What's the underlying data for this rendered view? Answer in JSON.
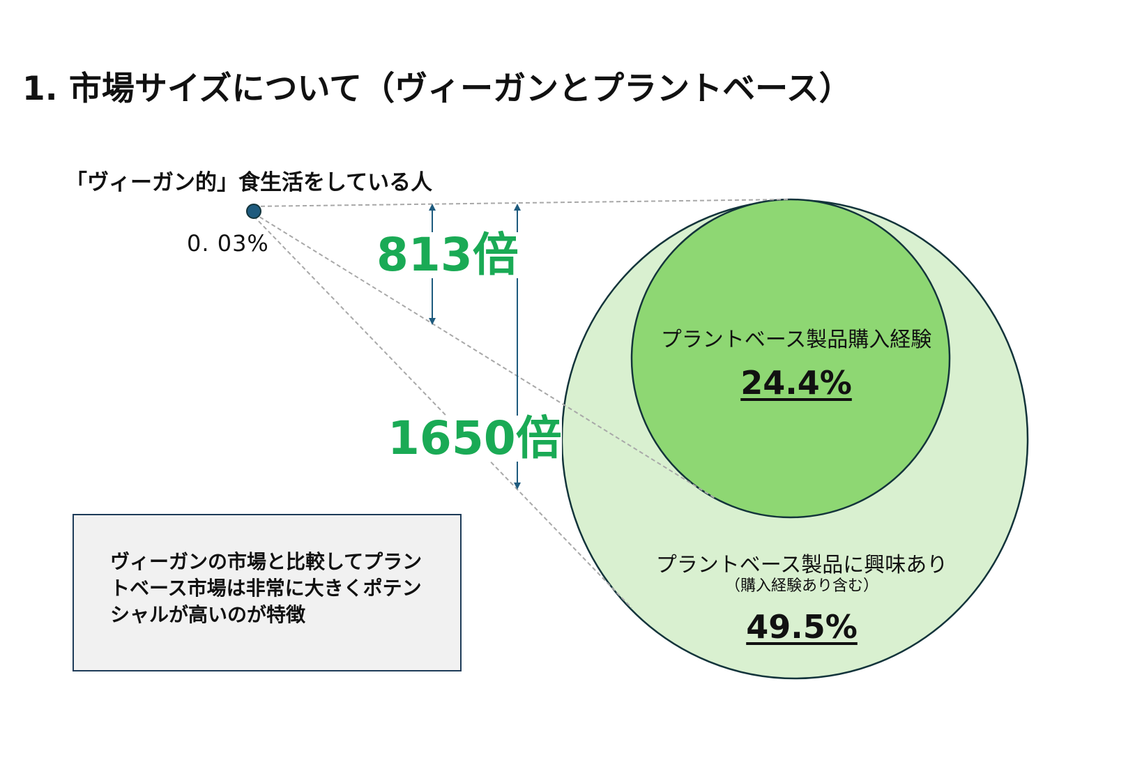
{
  "title": "1. 市場サイズについて（ヴィーガンとプラントベース）",
  "vegan": {
    "caption": "「ヴィーガン的」食生活をしている人",
    "value": "0. 03%"
  },
  "multipliers": {
    "inner": "813倍",
    "outer": "1650倍"
  },
  "inner_circle": {
    "name": "プラントベース製品購入経験",
    "value": "24.4%"
  },
  "outer_circle": {
    "name": "プラントベース製品に興味あり",
    "sub": "（購入経験あり含む）",
    "value": "49.5%"
  },
  "note": {
    "text": "ヴィーガンの市場と比較してプラントベース市場は非常に大きくポテンシャルが高いのが特徴"
  },
  "colors": {
    "inner_fill": "#8ed773",
    "outer_fill": "#d9f0d0",
    "circle_stroke": "#13343b",
    "dot_fill": "#1e5b7e",
    "arrow": "#1e5b7e",
    "multiplier_text": "#1aaa55",
    "dashed_line": "#a8a8a8",
    "note_border": "#1d3b58",
    "note_fill": "#f1f1f1"
  }
}
